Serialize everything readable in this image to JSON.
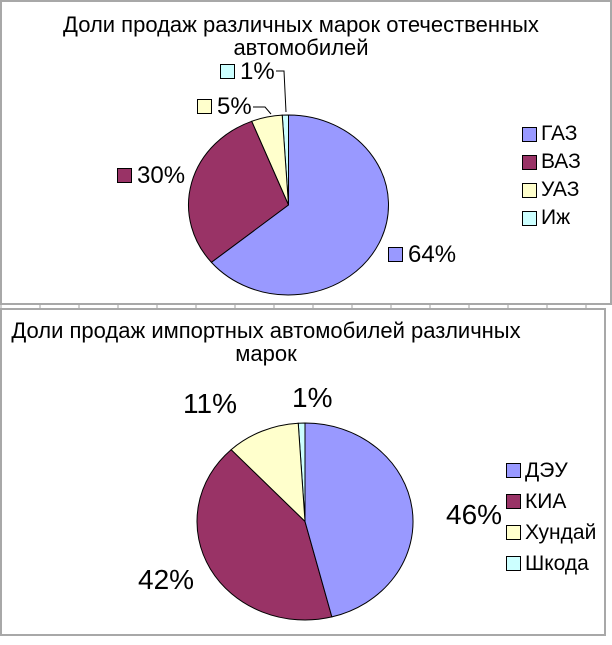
{
  "style": {
    "background": "#FFFFFF",
    "panel_border_color": "#A8A8A8",
    "slice_border_color": "#000000",
    "text_color": "#000000"
  },
  "chart_data": [
    {
      "type": "pie",
      "title": "Доли продаж различных марок отечественных автомобилей",
      "title_lines": [
        "Доли продаж различных марок отечественных",
        "автомобилей"
      ],
      "categories": [
        "ГАЗ",
        "ВАЗ",
        "УАЗ",
        "Иж"
      ],
      "values": [
        64,
        30,
        5,
        1
      ],
      "unit": "%",
      "colors": [
        "#9999FF",
        "#993366",
        "#FFFFCC",
        "#CCFFFF"
      ],
      "data_labels": [
        {
          "text": "64%",
          "has_key": true
        },
        {
          "text": "30%",
          "has_key": true
        },
        {
          "text": "5%",
          "has_key": true
        },
        {
          "text": "1%",
          "has_key": true
        }
      ],
      "legend_position": "right",
      "start_angle_deg": 0,
      "direction": "clockwise"
    },
    {
      "type": "pie",
      "title": "Доли продаж импортных автомобилей различных марок",
      "title_lines": [
        "Доли продаж импортных автомобилей различных",
        "марок"
      ],
      "categories": [
        "ДЭУ",
        "КИА",
        "Хундай",
        "Шкода"
      ],
      "values": [
        46,
        42,
        11,
        1
      ],
      "unit": "%",
      "colors": [
        "#9999FF",
        "#993366",
        "#FFFFCC",
        "#CCFFFF"
      ],
      "data_labels": [
        {
          "text": "46%",
          "has_key": false
        },
        {
          "text": "42%",
          "has_key": false
        },
        {
          "text": "11%",
          "has_key": false
        },
        {
          "text": "1%",
          "has_key": false
        }
      ],
      "legend_position": "right",
      "start_angle_deg": 0,
      "direction": "clockwise"
    }
  ]
}
